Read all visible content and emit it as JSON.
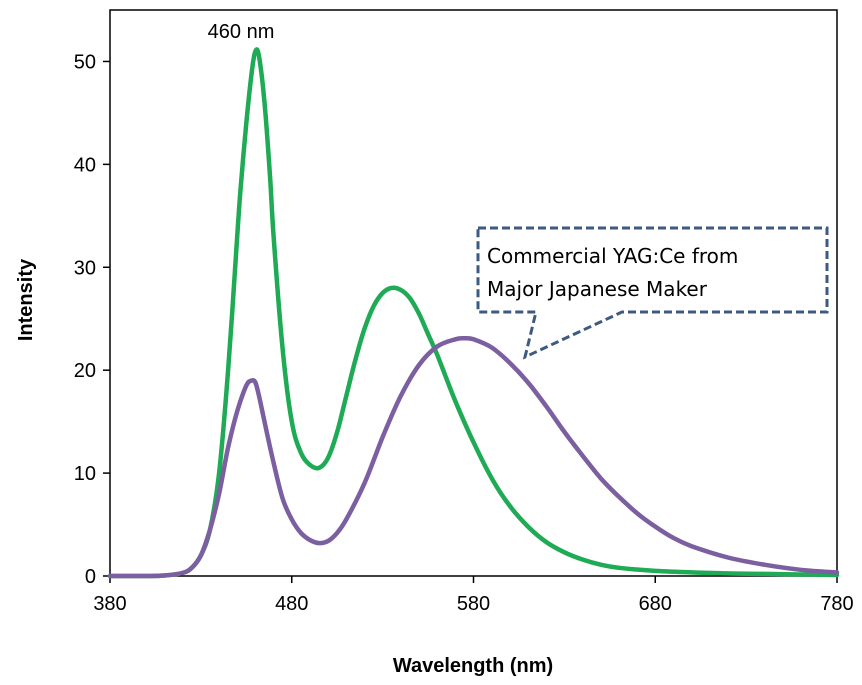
{
  "chart_data": {
    "type": "line",
    "title": "",
    "xlabel": "Wavelength (nm)",
    "ylabel": "Intensity",
    "xlim": [
      380,
      780
    ],
    "ylim": [
      0,
      55
    ],
    "xticks": [
      "380",
      "480",
      "580",
      "680",
      "780"
    ],
    "yticks": [
      "0",
      "10",
      "20",
      "30",
      "40",
      "50"
    ],
    "grid": false,
    "legend": "none",
    "annotations": {
      "peak_label": "460 nm",
      "callout_line1": "Commercial YAG:Ce from",
      "callout_line2": "Major Japanese Maker"
    },
    "series": [
      {
        "color": "#1faa55",
        "x": [
          380,
          400,
          410,
          420,
          425,
          430,
          435,
          440,
          445,
          450,
          452,
          455,
          458,
          460,
          462,
          465,
          468,
          470,
          475,
          480,
          485,
          490,
          495,
          500,
          505,
          510,
          515,
          520,
          525,
          530,
          535,
          540,
          545,
          550,
          555,
          560,
          570,
          580,
          590,
          600,
          610,
          620,
          630,
          640,
          650,
          660,
          680,
          700,
          720,
          740,
          760,
          780
        ],
        "y": [
          0,
          0,
          0.05,
          0.3,
          0.8,
          2,
          4.5,
          10,
          20,
          33,
          38,
          44,
          49,
          51,
          50.5,
          46,
          39,
          33,
          22,
          15,
          12,
          10.8,
          10.5,
          11.5,
          14,
          17.5,
          21,
          24,
          26.2,
          27.5,
          28,
          27.8,
          27,
          25.5,
          23.5,
          21.5,
          17,
          13,
          9.5,
          6.8,
          4.8,
          3.3,
          2.3,
          1.6,
          1.1,
          0.8,
          0.5,
          0.35,
          0.25,
          0.2,
          0.15,
          0.1
        ]
      },
      {
        "color": "#7b5fa0",
        "x": [
          380,
          400,
          410,
          420,
          425,
          430,
          435,
          440,
          445,
          450,
          455,
          458,
          460,
          462,
          465,
          470,
          475,
          480,
          485,
          490,
          495,
          500,
          505,
          510,
          520,
          530,
          540,
          550,
          560,
          570,
          575,
          580,
          590,
          600,
          610,
          620,
          630,
          640,
          650,
          660,
          670,
          680,
          690,
          700,
          720,
          740,
          760,
          780
        ],
        "y": [
          0,
          0,
          0.05,
          0.3,
          0.8,
          2,
          4.5,
          8,
          12.5,
          16,
          18.5,
          19,
          18.8,
          17.5,
          15,
          11,
          7.5,
          5.5,
          4.2,
          3.5,
          3.2,
          3.4,
          4.2,
          5.5,
          9,
          13.5,
          17.5,
          20.5,
          22.3,
          23,
          23.1,
          23,
          22.2,
          20.7,
          18.8,
          16.5,
          14,
          11.7,
          9.5,
          7.7,
          6.1,
          4.8,
          3.7,
          2.9,
          1.8,
          1.1,
          0.6,
          0.35
        ]
      }
    ]
  }
}
